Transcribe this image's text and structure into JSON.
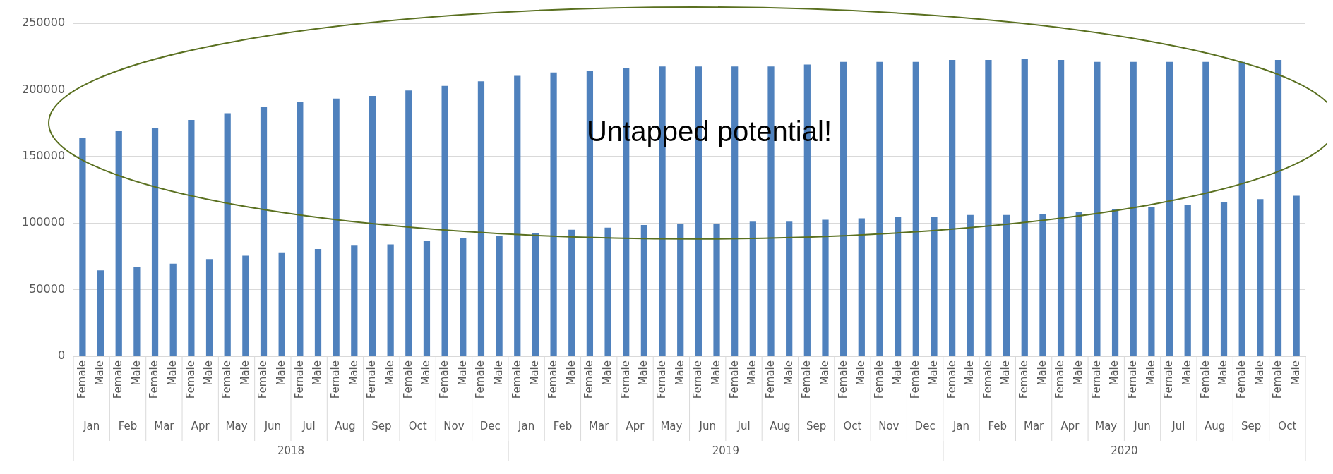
{
  "chart_data": {
    "type": "bar",
    "categories": [
      "Female",
      "Male",
      "Female",
      "Male",
      "Female",
      "Male",
      "Female",
      "Male",
      "Female",
      "Male",
      "Female",
      "Male",
      "Female",
      "Male",
      "Female",
      "Male",
      "Female",
      "Male",
      "Female",
      "Male",
      "Female",
      "Male",
      "Female",
      "Male",
      "Female",
      "Male",
      "Female",
      "Male",
      "Female",
      "Male",
      "Female",
      "Male",
      "Female",
      "Male",
      "Female",
      "Male",
      "Female",
      "Male",
      "Female",
      "Male",
      "Female",
      "Male",
      "Female",
      "Male",
      "Female",
      "Male",
      "Female",
      "Male",
      "Female",
      "Male",
      "Female",
      "Male",
      "Female",
      "Male",
      "Female",
      "Male",
      "Female",
      "Male",
      "Female",
      "Male",
      "Female",
      "Male",
      "Female",
      "Male",
      "Female",
      "Male",
      "Female",
      "Male"
    ],
    "values": [
      164000,
      64500,
      169000,
      67000,
      171500,
      69500,
      177500,
      73000,
      182500,
      75500,
      187500,
      78000,
      191000,
      80500,
      193500,
      83000,
      195500,
      84000,
      199500,
      86500,
      203000,
      89000,
      206500,
      90000,
      210500,
      92500,
      213000,
      95000,
      214000,
      96500,
      216500,
      98500,
      217500,
      99500,
      217500,
      99500,
      217500,
      101000,
      217500,
      101000,
      219000,
      102500,
      221000,
      103500,
      221000,
      104500,
      221000,
      104500,
      222500,
      106000,
      222500,
      106000,
      223500,
      107000,
      222500,
      108500,
      221000,
      110500,
      221000,
      112000,
      221000,
      113500,
      221000,
      115500,
      221000,
      118000,
      222500,
      120500
    ],
    "color": "#4f81bd",
    "ylim": [
      0,
      250000
    ],
    "yticks": [
      0,
      50000,
      100000,
      150000,
      200000,
      250000
    ],
    "grid": "y",
    "annotations": [
      "Untapped potential!",
      "Jan",
      "Feb",
      "Mar",
      "Apr",
      "May",
      "Jun",
      "Jul",
      "Aug",
      "Sep",
      "Oct",
      "Nov",
      "Dec",
      "Jan",
      "Feb",
      "Mar",
      "Apr",
      "May",
      "Jun",
      "Jul",
      "Aug",
      "Sep",
      "Oct",
      "Nov",
      "Dec",
      "Jan",
      "Feb",
      "Mar",
      "Apr",
      "May",
      "Jun",
      "Jul",
      "Aug",
      "Sep",
      "Oct",
      "2018",
      "2019",
      "2020"
    ]
  }
}
